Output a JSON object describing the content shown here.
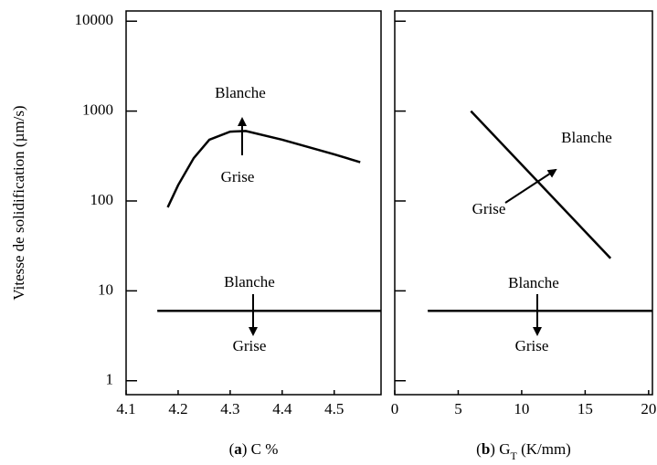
{
  "chart_data": [
    {
      "type": "line",
      "ylabel": "Vitesse de solidification (µm/s)",
      "xlabel_parts": [
        "(",
        "a",
        ") C %"
      ],
      "log_y": true,
      "xlim": [
        4.1,
        4.59
      ],
      "xticks": [
        4.1,
        4.2,
        4.3,
        4.4,
        4.5
      ],
      "ylim": [
        0.7,
        13000
      ],
      "yticks": [
        1,
        10,
        100,
        1000,
        10000
      ],
      "series": [
        {
          "color": "#000000",
          "x": [
            4.18,
            4.2,
            4.23,
            4.26,
            4.3,
            4.33,
            4.4,
            4.5,
            4.55
          ],
          "values": [
            85,
            150,
            300,
            480,
            590,
            600,
            480,
            330,
            270
          ]
        },
        {
          "color": "#000000",
          "x": [
            4.16,
            4.59
          ],
          "values": [
            6,
            6
          ]
        }
      ],
      "annotations": [
        "Blanche",
        "Grise",
        "Blanche",
        "Grise"
      ]
    },
    {
      "type": "line",
      "xlabel_parts": [
        "(",
        "b",
        ") G",
        "T",
        " (K/mm)"
      ],
      "log_y": true,
      "xlim": [
        0,
        20.3
      ],
      "xticks": [
        0,
        5,
        10,
        15,
        20
      ],
      "ylim": [
        0.7,
        13000
      ],
      "series": [
        {
          "color": "#000000",
          "x": [
            6,
            17
          ],
          "values": [
            1000,
            23
          ]
        },
        {
          "color": "#000000",
          "x": [
            2.6,
            20.3
          ],
          "values": [
            6,
            6
          ]
        }
      ],
      "annotations": [
        "Grise",
        "Blanche",
        "Blanche",
        "Grise"
      ]
    }
  ]
}
